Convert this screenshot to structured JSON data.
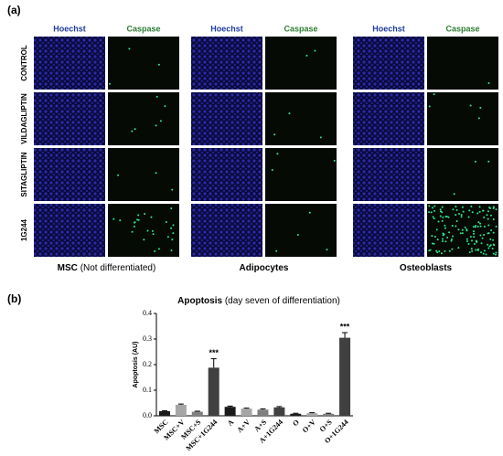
{
  "panel_a": {
    "label": "(a)",
    "column_headers": [
      "Hoechst",
      "Caspase"
    ],
    "rows": [
      "CONTROL",
      "VILDAGLIPTIN",
      "SITAGLIPTIN",
      "1G244"
    ],
    "groups": [
      {
        "name": "MSC",
        "note": "(Not differentiated)"
      },
      {
        "name": "Adipocytes"
      },
      {
        "name": "Osteoblasts"
      }
    ]
  },
  "chart_data": {
    "type": "bar",
    "panel_label": "(b)",
    "title": "Apoptosis",
    "subtitle": "(day seven of differentiation)",
    "ylabel": "Apoptosis (AU)",
    "categories": [
      "MSC",
      "MSC+V",
      "MSC+S",
      "MSC+1G244",
      "A",
      "A+V",
      "A+S",
      "A+1G244",
      "O",
      "O+V",
      "O+S",
      "O+1G244"
    ],
    "values": [
      0.018,
      0.043,
      0.016,
      0.188,
      0.035,
      0.028,
      0.024,
      0.033,
      0.008,
      0.01,
      0.008,
      0.305
    ],
    "errors": [
      0.002,
      0.003,
      0.002,
      0.035,
      0.003,
      0.002,
      0.003,
      0.003,
      0.002,
      0.002,
      0.002,
      0.02
    ],
    "colors": [
      "#1a1a1a",
      "#a6a6a6",
      "#7f7f7f",
      "#404040",
      "#1a1a1a",
      "#a6a6a6",
      "#7f7f7f",
      "#404040",
      "#1a1a1a",
      "#a6a6a6",
      "#7f7f7f",
      "#404040"
    ],
    "value_annotations": [
      null,
      null,
      null,
      "***",
      null,
      null,
      null,
      null,
      null,
      null,
      null,
      "***"
    ],
    "ylim": [
      0,
      0.4
    ],
    "yticks": [
      {
        "value": 0,
        "label": "0.0"
      },
      0.1,
      0.2,
      0.3,
      0.4
    ]
  }
}
